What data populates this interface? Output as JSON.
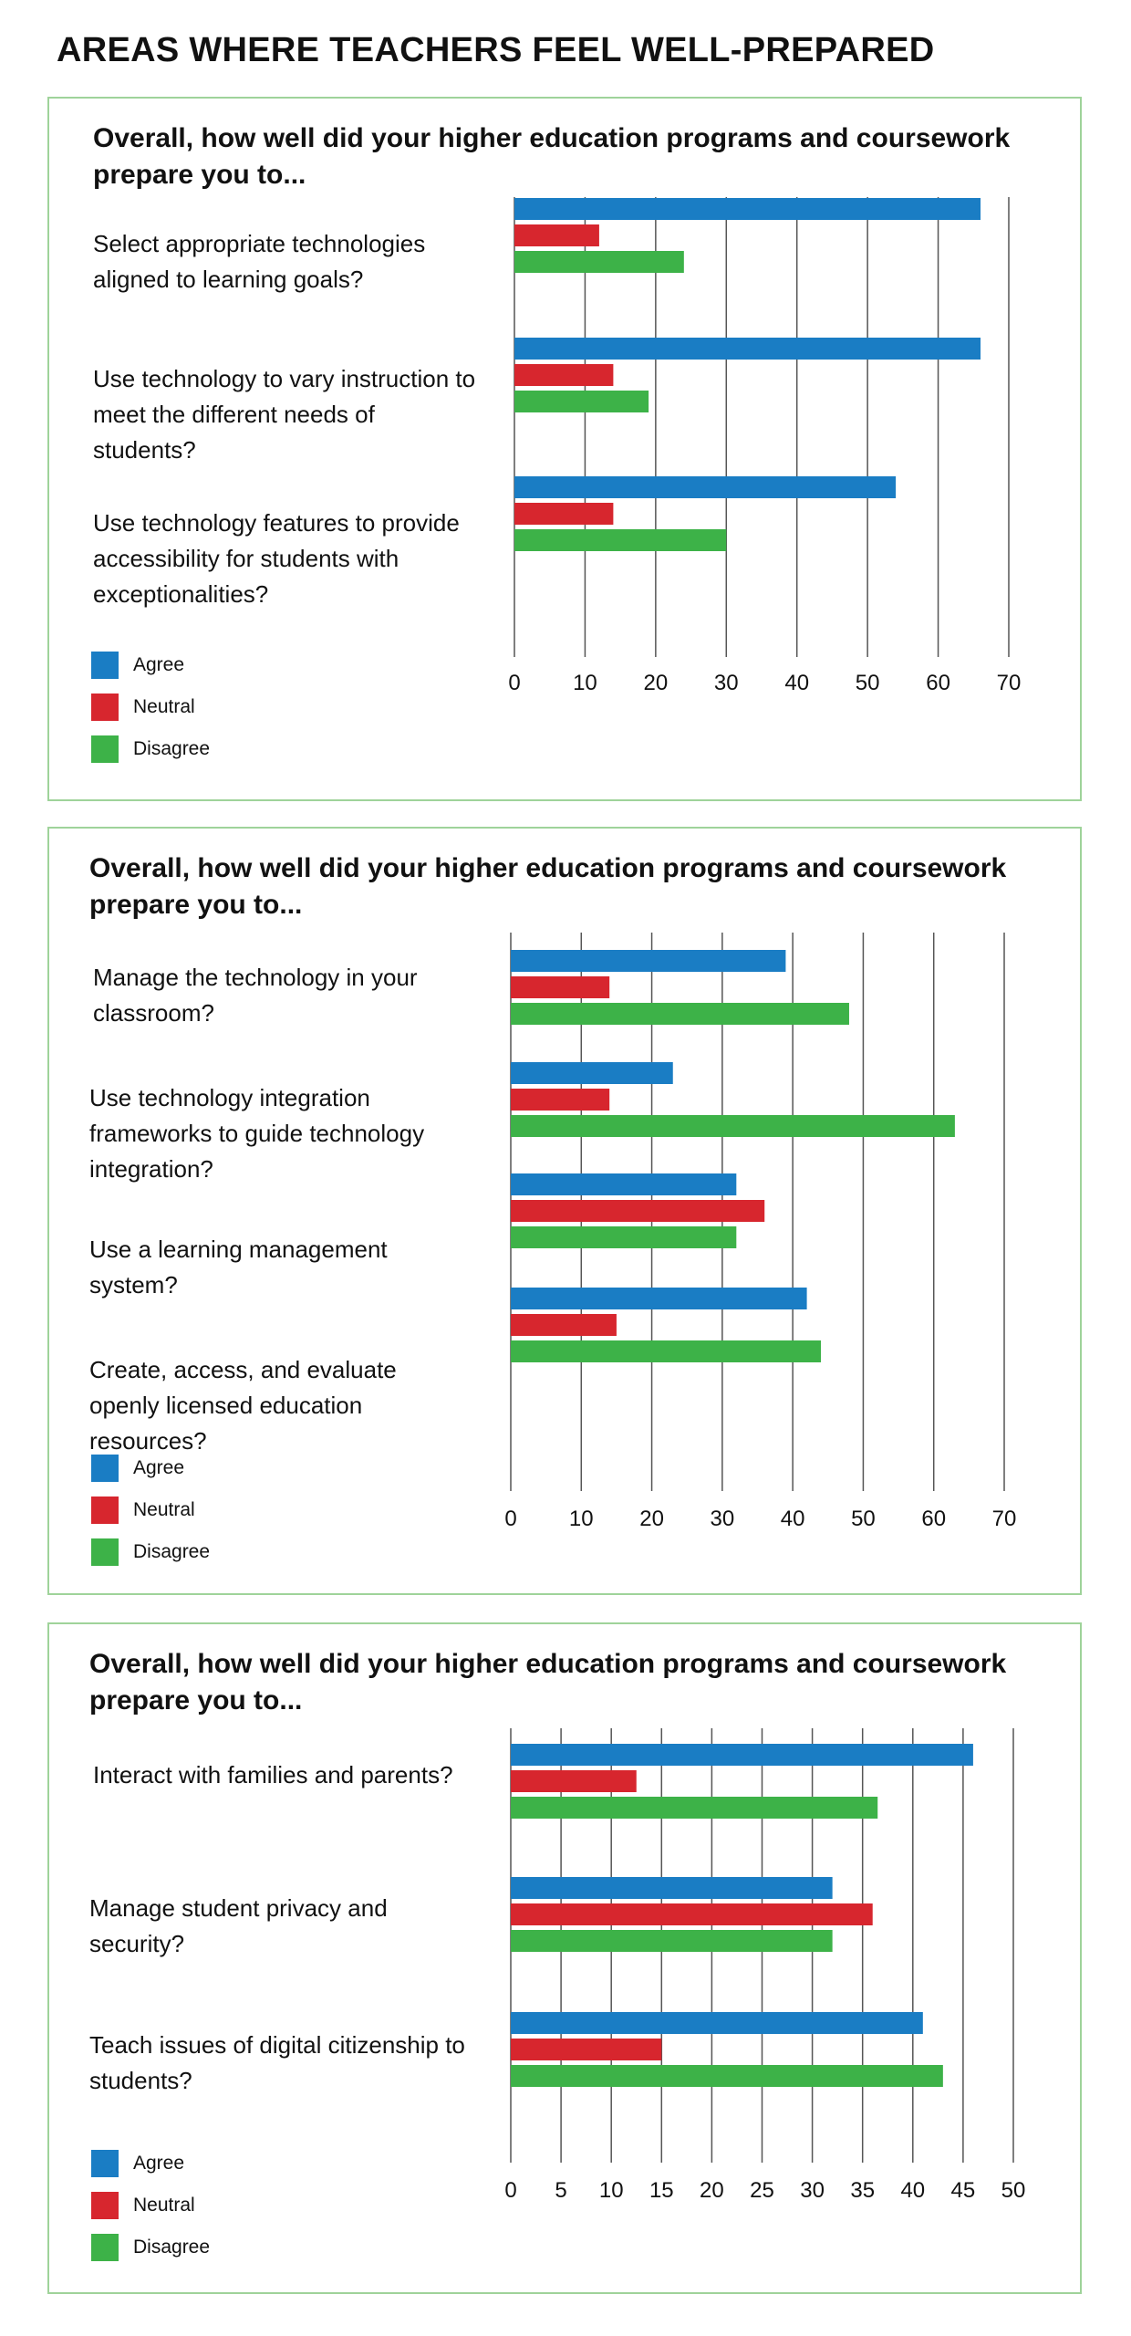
{
  "title": "AREAS WHERE TEACHERS FEEL WELL-PREPARED",
  "colors": {
    "agree": "#1a7dc4",
    "neutral": "#d7262e",
    "disagree": "#3db248",
    "panel_border": "#9fd39a",
    "gridline": "#555555"
  },
  "legend": [
    "Agree",
    "Neutral",
    "Disagree"
  ],
  "chart_data": [
    {
      "type": "bar",
      "orientation": "horizontal",
      "title": "Overall, how well did your higher education programs and coursework prepare you to...",
      "categories": [
        "Select appropriate technologies aligned to learning goals?",
        "Use technology to vary instruction to meet the different needs of students?",
        "Use technology features to provide accessibility for students with exceptionalities?"
      ],
      "series": [
        {
          "name": "Agree",
          "values": [
            66,
            66,
            54
          ]
        },
        {
          "name": "Neutral",
          "values": [
            12,
            14,
            14
          ]
        },
        {
          "name": "Disagree",
          "values": [
            24,
            19,
            30
          ]
        }
      ],
      "xlim": [
        0,
        70
      ],
      "ticks": [
        0,
        10,
        20,
        30,
        40,
        50,
        60,
        70
      ],
      "grid": true,
      "legend_position": "bottom-left"
    },
    {
      "type": "bar",
      "orientation": "horizontal",
      "title": "Overall, how well did your higher education programs and coursework prepare you to...",
      "categories": [
        "Manage the technology in your classroom?",
        "Use technology integration frameworks to guide technology integration?",
        "Use a learning management system?",
        "Create, access, and evaluate openly licensed education resources?"
      ],
      "series": [
        {
          "name": "Agree",
          "values": [
            39,
            23,
            32,
            42
          ]
        },
        {
          "name": "Neutral",
          "values": [
            14,
            14,
            36,
            15
          ]
        },
        {
          "name": "Disagree",
          "values": [
            48,
            63,
            32,
            44
          ]
        }
      ],
      "xlim": [
        0,
        70
      ],
      "ticks": [
        0,
        10,
        20,
        30,
        40,
        50,
        60,
        70
      ],
      "grid": true,
      "legend_position": "bottom-left"
    },
    {
      "type": "bar",
      "orientation": "horizontal",
      "title": "Overall, how well did your higher education programs and coursework prepare you to...",
      "categories": [
        "Interact with families and parents?",
        "Manage student privacy and security?",
        "Teach issues of digital citizenship to students?"
      ],
      "series": [
        {
          "name": "Agree",
          "values": [
            46,
            32,
            41
          ]
        },
        {
          "name": "Neutral",
          "values": [
            12.5,
            36,
            15
          ]
        },
        {
          "name": "Disagree",
          "values": [
            36.5,
            32,
            43
          ]
        }
      ],
      "xlim": [
        0,
        50
      ],
      "ticks": [
        0,
        5,
        10,
        15,
        20,
        25,
        30,
        35,
        40,
        45,
        50
      ],
      "grid": true,
      "legend_position": "bottom-left"
    }
  ]
}
